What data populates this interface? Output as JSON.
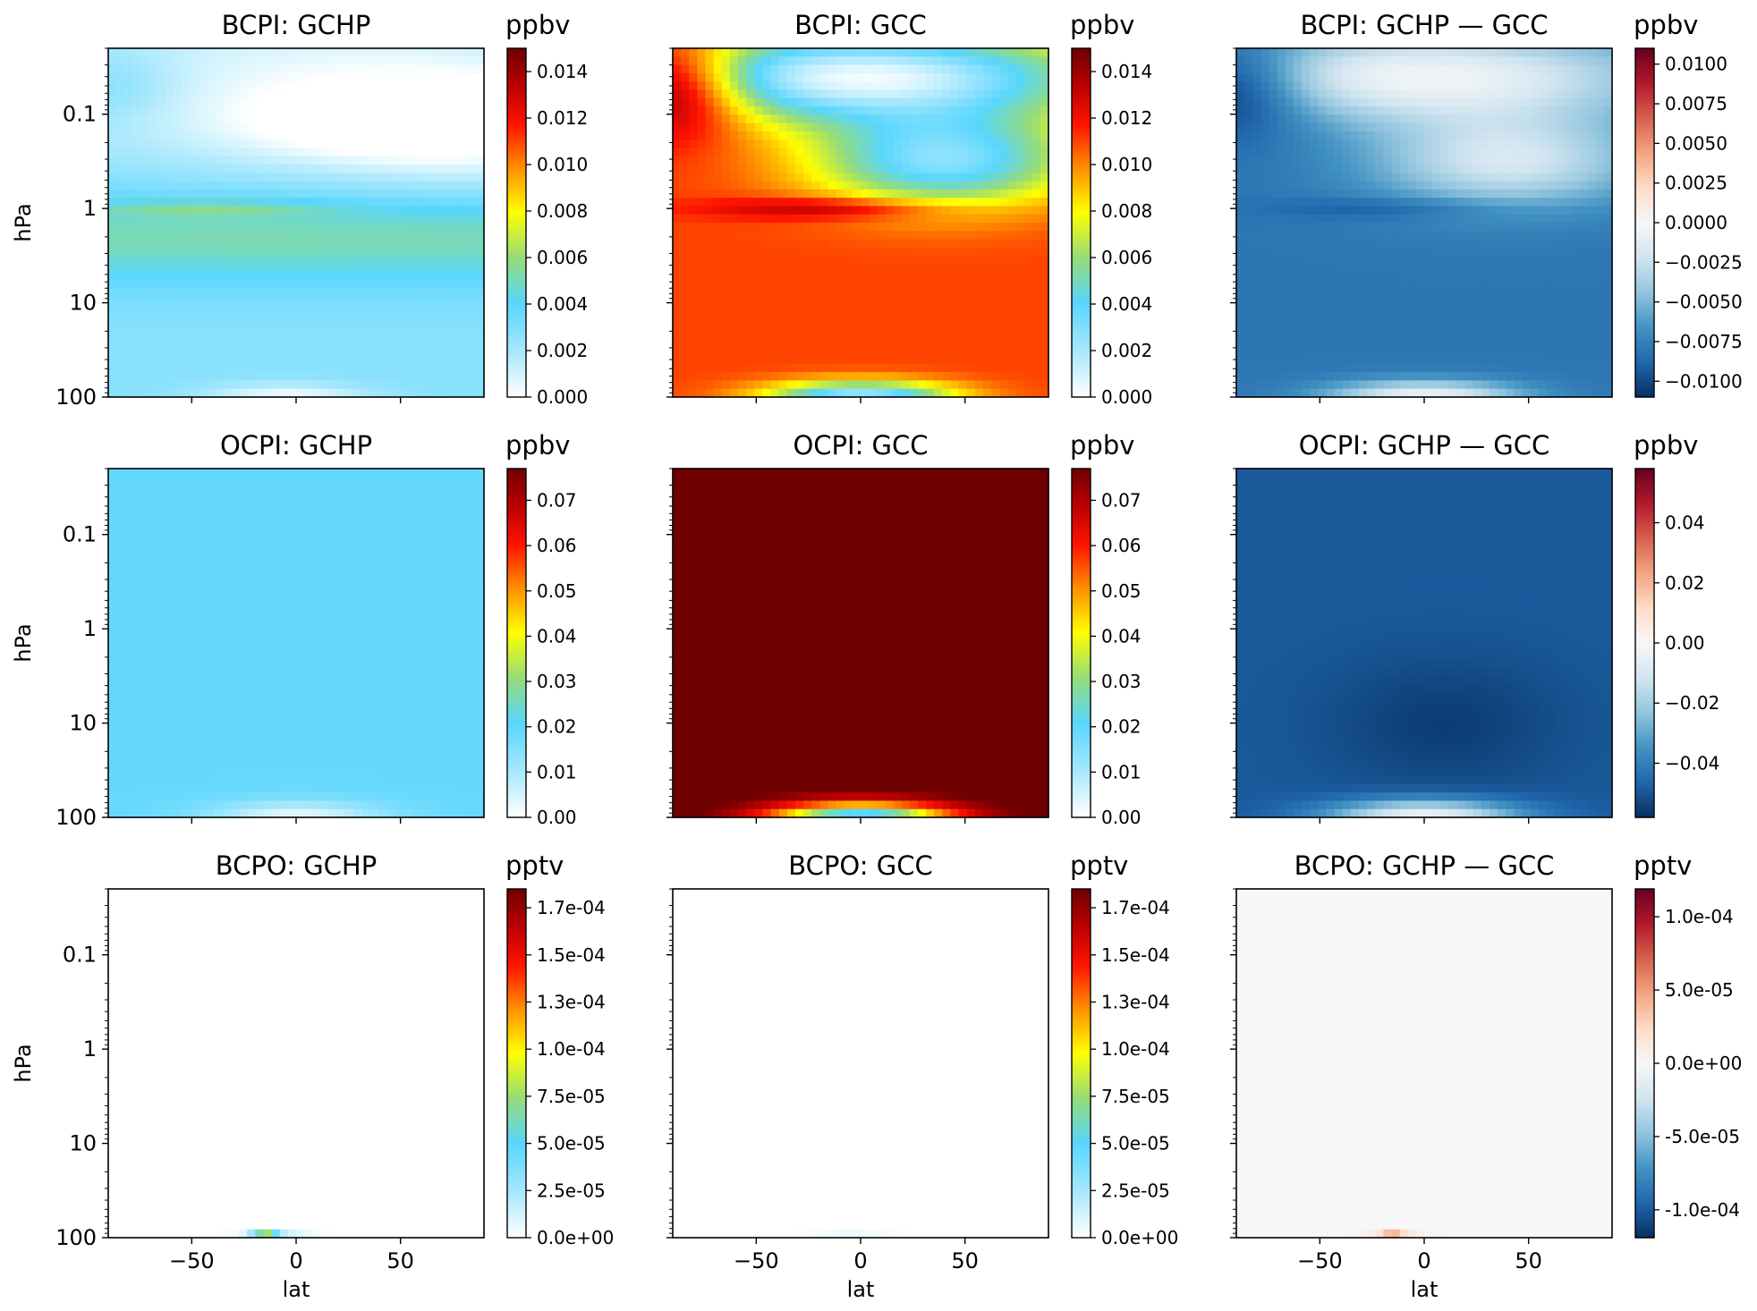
{
  "figure": {
    "rows": [
      {
        "species": "BCPI",
        "unit": "ppbv"
      },
      {
        "species": "OCPI",
        "unit": "ppbv"
      },
      {
        "species": "BCPO",
        "unit": "pptv"
      }
    ]
  },
  "chart_data": [
    {
      "type": "heatmap",
      "row": 0,
      "col": 0,
      "title": "BCPI: GCHP",
      "cbar_label": "ppbv",
      "colormap": "WhGrYlRd",
      "clim": [
        0,
        0.015
      ],
      "cbar_ticks": [
        "0.000",
        "0.002",
        "0.004",
        "0.006",
        "0.008",
        "0.010",
        "0.012",
        "0.014"
      ],
      "cbar_tick_values": [
        0,
        0.002,
        0.004,
        0.006,
        0.008,
        0.01,
        0.012,
        0.014
      ],
      "ylabel": "hPa",
      "xlabel": "",
      "yscale": "log",
      "ylim": [
        100,
        0.02
      ],
      "xlim": [
        -90,
        90
      ],
      "yticks": [
        "0.1",
        "1",
        "10",
        "100"
      ],
      "xticks": [],
      "field": {
        "bg": 0.0028,
        "blobs": [
          {
            "lat": 0,
            "lp": 0.3,
            "slat": 300,
            "slp": 0.35,
            "a": 0.0025,
            "m": 1
          },
          {
            "lat": 0,
            "lp": -1.3,
            "slat": 90,
            "slp": 0.7,
            "a": -0.0022,
            "m": 1
          },
          {
            "lat": 30,
            "lp": -0.9,
            "slat": 45,
            "slp": 0.25,
            "a": -0.0015,
            "m": 1
          },
          {
            "lat": 90,
            "lp": -0.9,
            "slat": 50,
            "slp": 0.45,
            "a": -0.0025,
            "m": 1
          },
          {
            "lat": -90,
            "lp": -1.3,
            "slat": 25,
            "slp": 0.25,
            "a": 0.0012,
            "m": 1
          },
          {
            "lat": -5,
            "lp": 2.0,
            "slat": 28,
            "slp": 0.1,
            "a": -0.0025,
            "m": 1
          },
          {
            "lat": -40,
            "lp": 0.0,
            "slat": 40,
            "slp": 0.06,
            "a": 0.0015,
            "m": 1
          }
        ]
      }
    },
    {
      "type": "heatmap",
      "row": 0,
      "col": 1,
      "title": "BCPI: GCC",
      "cbar_label": "ppbv",
      "colormap": "WhGrYlRd",
      "clim": [
        0,
        0.015
      ],
      "cbar_ticks": [
        "0.000",
        "0.002",
        "0.004",
        "0.006",
        "0.008",
        "0.010",
        "0.012",
        "0.014"
      ],
      "cbar_tick_values": [
        0,
        0.002,
        0.004,
        0.006,
        0.008,
        0.01,
        0.012,
        0.014
      ],
      "ylabel": "",
      "xlabel": "",
      "yscale": "log",
      "ylim": [
        100,
        0.02
      ],
      "xlim": [
        -90,
        90
      ],
      "yticks": [],
      "xticks": [],
      "field": {
        "bg": 0.011,
        "blobs": [
          {
            "lat": 0,
            "lp": -1.4,
            "slat": 80,
            "slp": 0.35,
            "a": -0.0105,
            "m": 1
          },
          {
            "lat": 40,
            "lp": -0.5,
            "slat": 45,
            "slp": 0.35,
            "a": -0.008,
            "m": 1
          },
          {
            "lat": -90,
            "lp": -1.3,
            "slat": 25,
            "slp": 0.35,
            "a": 0.007,
            "m": 1
          },
          {
            "lat": -15,
            "lp": 0.0,
            "slat": 40,
            "slp": 0.08,
            "a": 0.003,
            "m": 1
          },
          {
            "lat": 0,
            "lp": 2.0,
            "slat": 32,
            "slp": 0.12,
            "a": -0.009,
            "m": 1
          }
        ]
      }
    },
    {
      "type": "heatmap",
      "row": 0,
      "col": 2,
      "title": "BCPI: GCHP — GCC",
      "cbar_label": "ppbv",
      "colormap": "RdBu_r",
      "clim": [
        -0.011,
        0.011
      ],
      "cbar_ticks": [
        "0.0100",
        "0.0075",
        "0.0050",
        "0.0025",
        "0.0000",
        "−0.0025",
        "−0.0050",
        "−0.0075",
        "−0.0100"
      ],
      "cbar_tick_values": [
        0.01,
        0.0075,
        0.005,
        0.0025,
        0,
        -0.0025,
        -0.005,
        -0.0075,
        -0.01
      ],
      "ylabel": "",
      "xlabel": "",
      "yscale": "log",
      "ylim": [
        100,
        0.02
      ],
      "xlim": [
        -90,
        90
      ],
      "yticks": [],
      "xticks": [],
      "field": {
        "bg": -0.008,
        "blobs": [
          {
            "lat": 0,
            "lp": -1.4,
            "slat": 80,
            "slp": 0.35,
            "a": 0.0075,
            "m": 1
          },
          {
            "lat": 40,
            "lp": -0.5,
            "slat": 45,
            "slp": 0.35,
            "a": 0.006,
            "m": 1
          },
          {
            "lat": -90,
            "lp": -1.3,
            "slat": 25,
            "slp": 0.35,
            "a": -0.005,
            "m": 1
          },
          {
            "lat": -15,
            "lp": 0.0,
            "slat": 40,
            "slp": 0.08,
            "a": -0.0015,
            "m": 1
          },
          {
            "lat": 0,
            "lp": 2.0,
            "slat": 32,
            "slp": 0.12,
            "a": 0.0075,
            "m": 1
          }
        ]
      }
    },
    {
      "type": "heatmap",
      "row": 1,
      "col": 0,
      "title": "OCPI: GCHP",
      "cbar_label": "ppbv",
      "colormap": "WhGrYlRd",
      "clim": [
        0,
        0.077
      ],
      "cbar_ticks": [
        "0.00",
        "0.01",
        "0.02",
        "0.03",
        "0.04",
        "0.05",
        "0.06",
        "0.07"
      ],
      "cbar_tick_values": [
        0,
        0.01,
        0.02,
        0.03,
        0.04,
        0.05,
        0.06,
        0.07
      ],
      "ylabel": "hPa",
      "xlabel": "",
      "yscale": "log",
      "ylim": [
        100,
        0.02
      ],
      "xlim": [
        -90,
        90
      ],
      "yticks": [
        "0.1",
        "1",
        "10",
        "100"
      ],
      "xticks": [],
      "field": {
        "bg": 0.019,
        "blobs": [
          {
            "lat": 0,
            "lp": 2.0,
            "slat": 30,
            "slp": 0.12,
            "a": -0.016,
            "m": 1
          }
        ]
      }
    },
    {
      "type": "heatmap",
      "row": 1,
      "col": 1,
      "title": "OCPI: GCC",
      "cbar_label": "ppbv",
      "colormap": "WhGrYlRd",
      "clim": [
        0,
        0.077
      ],
      "cbar_ticks": [
        "0.00",
        "0.01",
        "0.02",
        "0.03",
        "0.04",
        "0.05",
        "0.06",
        "0.07"
      ],
      "cbar_tick_values": [
        0,
        0.01,
        0.02,
        0.03,
        0.04,
        0.05,
        0.06,
        0.07
      ],
      "ylabel": "",
      "xlabel": "",
      "yscale": "log",
      "ylim": [
        100,
        0.02
      ],
      "xlim": [
        -90,
        90
      ],
      "yticks": [],
      "xticks": [],
      "field": {
        "bg": 0.08,
        "blobs": [
          {
            "lat": 0,
            "lp": 2.05,
            "slat": 32,
            "slp": 0.14,
            "a": -0.075,
            "m": 1
          }
        ]
      }
    },
    {
      "type": "heatmap",
      "row": 1,
      "col": 2,
      "title": "OCPI: GCHP — GCC",
      "cbar_label": "ppbv",
      "colormap": "RdBu_r",
      "clim": [
        -0.058,
        0.058
      ],
      "cbar_ticks": [
        "0.04",
        "0.02",
        "0.00",
        "−0.02",
        "−0.04"
      ],
      "cbar_tick_values": [
        0.04,
        0.02,
        0,
        -0.02,
        -0.04
      ],
      "ylabel": "",
      "xlabel": "",
      "yscale": "log",
      "ylim": [
        100,
        0.02
      ],
      "xlim": [
        -90,
        90
      ],
      "yticks": [],
      "xticks": [],
      "field": {
        "bg": -0.049,
        "blobs": [
          {
            "lat": 10,
            "lp": 1.0,
            "slat": 40,
            "slp": 0.5,
            "a": -0.006,
            "m": 1
          },
          {
            "lat": 0,
            "lp": 2.0,
            "slat": 32,
            "slp": 0.13,
            "a": 0.047,
            "m": 1
          }
        ]
      }
    },
    {
      "type": "heatmap",
      "row": 2,
      "col": 0,
      "title": "BCPO: GCHP",
      "cbar_label": "pptv",
      "colormap": "WhGrYlRd",
      "clim": [
        0,
        0.000185
      ],
      "cbar_ticks": [
        "0.0e+00",
        "2.5e-05",
        "5.0e-05",
        "7.5e-05",
        "1.0e-04",
        "1.3e-04",
        "1.5e-04",
        "1.7e-04"
      ],
      "cbar_tick_values": [
        0,
        2.5e-05,
        5e-05,
        7.5e-05,
        0.0001,
        0.000125,
        0.00015,
        0.000175
      ],
      "ylabel": "hPa",
      "xlabel": "lat",
      "yscale": "log",
      "ylim": [
        100,
        0.02
      ],
      "xlim": [
        -90,
        90
      ],
      "yticks": [
        "0.1",
        "1",
        "10",
        "100"
      ],
      "xticks": [
        "−50",
        "0",
        "50"
      ],
      "field": {
        "bg": 0,
        "blobs": [
          {
            "lat": -15,
            "lp": 2.0,
            "slat": 4,
            "slp": 0.03,
            "a": 0.00019,
            "m": 1
          },
          {
            "lat": -10,
            "lp": 2.0,
            "slat": 11,
            "slp": 0.03,
            "a": 4.5e-05,
            "m": 1
          }
        ]
      }
    },
    {
      "type": "heatmap",
      "row": 2,
      "col": 1,
      "title": "BCPO: GCC",
      "cbar_label": "pptv",
      "colormap": "WhGrYlRd",
      "clim": [
        0,
        0.000185
      ],
      "cbar_ticks": [
        "0.0e+00",
        "2.5e-05",
        "5.0e-05",
        "7.5e-05",
        "1.0e-04",
        "1.3e-04",
        "1.5e-04",
        "1.7e-04"
      ],
      "cbar_tick_values": [
        0,
        2.5e-05,
        5e-05,
        7.5e-05,
        0.0001,
        0.000125,
        0.00015,
        0.000175
      ],
      "ylabel": "",
      "xlabel": "lat",
      "yscale": "log",
      "ylim": [
        100,
        0.02
      ],
      "xlim": [
        -90,
        90
      ],
      "yticks": [],
      "xticks": [
        "−50",
        "0",
        "50"
      ],
      "field": {
        "bg": 0,
        "blobs": [
          {
            "lat": -5,
            "lp": 2.0,
            "slat": 13,
            "slp": 0.02,
            "a": 6e-05,
            "m": 1
          }
        ]
      }
    },
    {
      "type": "heatmap",
      "row": 2,
      "col": 2,
      "title": "BCPO: GCHP — GCC",
      "cbar_label": "pptv",
      "colormap": "RdBu_r",
      "clim": [
        -0.000119,
        0.000119
      ],
      "cbar_ticks": [
        "1.0e-04",
        "5.0e-05",
        "0.0e+00",
        "-5.0e-05",
        "-1.0e-04"
      ],
      "cbar_tick_values": [
        0.0001,
        5e-05,
        0,
        -5e-05,
        -0.0001
      ],
      "ylabel": "",
      "xlabel": "lat",
      "yscale": "log",
      "ylim": [
        100,
        0.02
      ],
      "xlim": [
        -90,
        90
      ],
      "yticks": [],
      "xticks": [
        "−50",
        "0",
        "50"
      ],
      "field": {
        "bg": 0,
        "blobs": [
          {
            "lat": -15,
            "lp": 2.0,
            "slat": 4,
            "slp": 0.025,
            "a": 0.00015,
            "m": 1
          },
          {
            "lat": -15,
            "lp": 2.0,
            "slat": 10,
            "slp": 0.03,
            "a": 3e-05,
            "m": 1
          }
        ]
      }
    }
  ]
}
